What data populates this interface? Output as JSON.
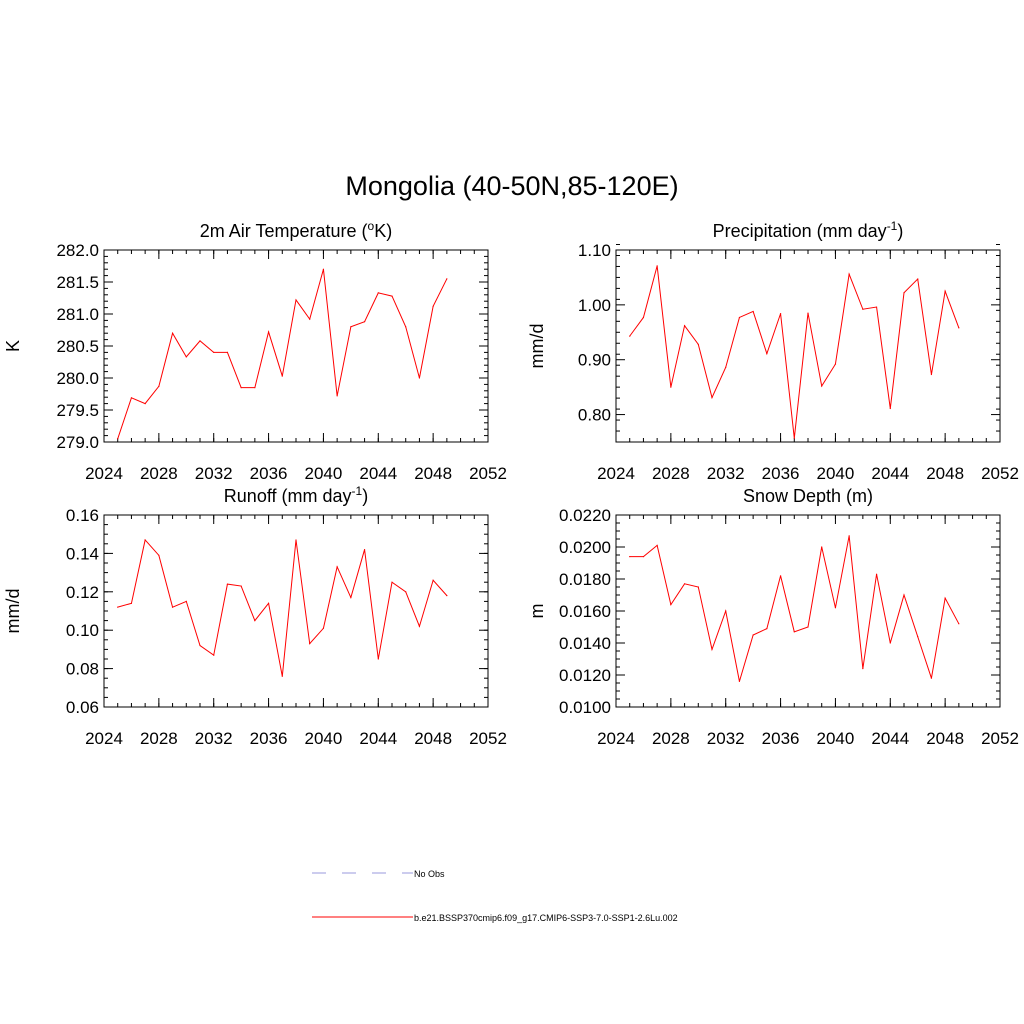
{
  "figure": {
    "title": "Mongolia (40-50N,85-120E)"
  },
  "legend": {
    "items": [
      {
        "label": "No Obs",
        "color": "#9999dd",
        "dashed": true
      },
      {
        "label": "b.e21.BSSP370cmip6.f09_g17.CMIP6-SSP3-7.0-SSP1-2.6Lu.002",
        "color": "#ff0000",
        "dashed": false
      }
    ]
  },
  "chart_data": [
    {
      "type": "line",
      "title": "2m Air Temperature (°K)",
      "title_text": "2m Air Temperature (",
      "title_sup": "o",
      "title_tail": "K)",
      "ylabel": "K",
      "xlim": [
        2024,
        2052
      ],
      "ylim": [
        279.0,
        282.0
      ],
      "xticks": [
        2024,
        2028,
        2032,
        2036,
        2040,
        2044,
        2048,
        2052
      ],
      "yticks": [
        279.0,
        279.5,
        280.0,
        280.5,
        281.0,
        281.5,
        282.0
      ],
      "ytick_decimals": 1,
      "yminor": 0.1,
      "x": [
        2025,
        2026,
        2027,
        2028,
        2029,
        2030,
        2031,
        2032,
        2033,
        2034,
        2035,
        2036,
        2037,
        2038,
        2039,
        2040,
        2041,
        2042,
        2043,
        2044,
        2045,
        2046,
        2047,
        2048,
        2049
      ],
      "series": [
        {
          "color": "#ff0000",
          "values": [
            279.05,
            279.69,
            279.6,
            279.87,
            280.7,
            280.33,
            280.58,
            280.4,
            280.4,
            279.85,
            279.85,
            280.72,
            280.03,
            281.22,
            280.92,
            281.7,
            279.72,
            280.8,
            280.88,
            281.33,
            281.28,
            280.8,
            280.0,
            281.12,
            281.55
          ]
        }
      ]
    },
    {
      "type": "line",
      "title": "Precipitation (mm day-1)",
      "title_text": "Precipitation (mm day",
      "title_sup": "-1",
      "title_tail": ")",
      "ylabel": "mm/d",
      "xlim": [
        2024,
        2052
      ],
      "ylim": [
        0.75,
        1.1
      ],
      "xticks": [
        2024,
        2028,
        2032,
        2036,
        2040,
        2044,
        2048,
        2052
      ],
      "yticks": [
        0.8,
        0.9,
        1.0,
        1.1
      ],
      "ytick_decimals": 2,
      "yminor": 0.02,
      "x": [
        2025,
        2026,
        2027,
        2028,
        2029,
        2030,
        2031,
        2032,
        2033,
        2034,
        2035,
        2036,
        2037,
        2038,
        2039,
        2040,
        2041,
        2042,
        2043,
        2044,
        2045,
        2046,
        2047,
        2048,
        2049
      ],
      "series": [
        {
          "color": "#ff0000",
          "values": [
            0.943,
            0.977,
            1.071,
            0.85,
            0.962,
            0.928,
            0.831,
            0.886,
            0.977,
            0.988,
            0.911,
            0.984,
            0.757,
            0.985,
            0.852,
            0.892,
            1.056,
            0.992,
            0.996,
            0.811,
            1.022,
            1.047,
            0.873,
            1.025,
            0.958
          ]
        }
      ]
    },
    {
      "type": "line",
      "title": "Runoff (mm day-1)",
      "title_text": "Runoff (mm day",
      "title_sup": "-1",
      "title_tail": ")",
      "ylabel": "mm/d",
      "xlim": [
        2024,
        2052
      ],
      "ylim": [
        0.06,
        0.16
      ],
      "xticks": [
        2024,
        2028,
        2032,
        2036,
        2040,
        2044,
        2048,
        2052
      ],
      "yticks": [
        0.06,
        0.08,
        0.1,
        0.12,
        0.14,
        0.16
      ],
      "ytick_decimals": 2,
      "yminor": 0.005,
      "x": [
        2025,
        2026,
        2027,
        2028,
        2029,
        2030,
        2031,
        2032,
        2033,
        2034,
        2035,
        2036,
        2037,
        2038,
        2039,
        2040,
        2041,
        2042,
        2043,
        2044,
        2045,
        2046,
        2047,
        2048,
        2049
      ],
      "series": [
        {
          "color": "#ff0000",
          "values": [
            0.112,
            0.114,
            0.147,
            0.139,
            0.112,
            0.115,
            0.092,
            0.087,
            0.124,
            0.123,
            0.105,
            0.114,
            0.076,
            0.147,
            0.093,
            0.101,
            0.133,
            0.117,
            0.142,
            0.085,
            0.125,
            0.12,
            0.102,
            0.126,
            0.118
          ]
        }
      ]
    },
    {
      "type": "line",
      "title": "Snow Depth (m)",
      "title_text": "Snow Depth (m)",
      "title_sup": "",
      "title_tail": "",
      "ylabel": "m",
      "xlim": [
        2024,
        2052
      ],
      "ylim": [
        0.01,
        0.022
      ],
      "xticks": [
        2024,
        2028,
        2032,
        2036,
        2040,
        2044,
        2048,
        2052
      ],
      "yticks": [
        0.01,
        0.012,
        0.014,
        0.016,
        0.018,
        0.02,
        0.022
      ],
      "ytick_decimals": 4,
      "yminor": 0.0005,
      "x": [
        2025,
        2026,
        2027,
        2028,
        2029,
        2030,
        2031,
        2032,
        2033,
        2034,
        2035,
        2036,
        2037,
        2038,
        2039,
        2040,
        2041,
        2042,
        2043,
        2044,
        2045,
        2046,
        2047,
        2048,
        2049
      ],
      "series": [
        {
          "color": "#ff0000",
          "values": [
            0.0194,
            0.0194,
            0.0201,
            0.0164,
            0.0177,
            0.0175,
            0.0136,
            0.016,
            0.0116,
            0.0145,
            0.0149,
            0.0182,
            0.0147,
            0.015,
            0.02,
            0.0162,
            0.0207,
            0.0124,
            0.0183,
            0.014,
            0.017,
            0.0144,
            0.0118,
            0.0168,
            0.0152
          ]
        }
      ]
    }
  ]
}
